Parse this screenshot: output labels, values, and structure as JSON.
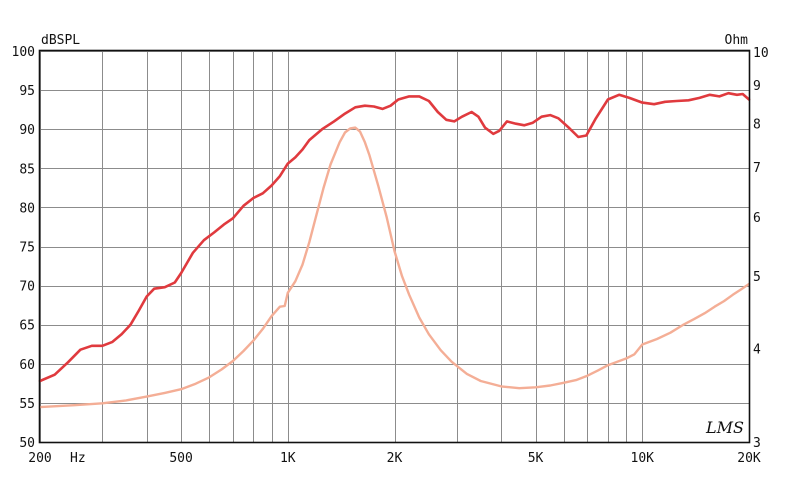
{
  "chart_data": {
    "type": "line",
    "title": "",
    "logo_text": "LMS",
    "x_axis": {
      "scale": "log",
      "range": [
        200,
        20000
      ],
      "unit_label": "Hz",
      "tick_values": [
        200,
        500,
        1000,
        2000,
        5000,
        10000,
        20000
      ],
      "tick_labels": [
        "200",
        "500",
        "1K",
        "2K",
        "5K",
        "10K",
        "20K"
      ],
      "gridlines": [
        200,
        300,
        400,
        500,
        600,
        700,
        800,
        900,
        1000,
        2000,
        3000,
        4000,
        5000,
        6000,
        7000,
        8000,
        9000,
        10000,
        20000
      ]
    },
    "y_left": {
      "label": "dBSPL",
      "range": [
        50,
        100
      ],
      "ticks": [
        50,
        55,
        60,
        65,
        70,
        75,
        80,
        85,
        90,
        95,
        100
      ],
      "tick_labels": [
        "50",
        "55",
        "60",
        "65",
        "70",
        "75",
        "80",
        "85",
        "90",
        "95",
        "100"
      ]
    },
    "y_right": {
      "label": "Ohm",
      "scale": "log",
      "range": [
        3,
        10
      ],
      "ticks": [
        3,
        4,
        5,
        6,
        7,
        8,
        9,
        10
      ],
      "tick_labels": [
        "3",
        "4",
        "5",
        "6",
        "7",
        "8",
        "9",
        "10"
      ]
    },
    "grid": true,
    "series": [
      {
        "axis": "left",
        "color": "#e03a3e",
        "points": [
          [
            200,
            57.8
          ],
          [
            220,
            58.6
          ],
          [
            240,
            60.2
          ],
          [
            260,
            61.8
          ],
          [
            280,
            62.3
          ],
          [
            300,
            62.3
          ],
          [
            320,
            62.8
          ],
          [
            340,
            63.8
          ],
          [
            360,
            65.0
          ],
          [
            380,
            66.8
          ],
          [
            400,
            68.6
          ],
          [
            420,
            69.6
          ],
          [
            450,
            69.8
          ],
          [
            480,
            70.4
          ],
          [
            500,
            71.6
          ],
          [
            540,
            74.2
          ],
          [
            580,
            75.8
          ],
          [
            620,
            76.8
          ],
          [
            660,
            77.8
          ],
          [
            700,
            78.6
          ],
          [
            750,
            80.2
          ],
          [
            800,
            81.2
          ],
          [
            850,
            81.8
          ],
          [
            900,
            82.8
          ],
          [
            950,
            84.0
          ],
          [
            1000,
            85.6
          ],
          [
            1050,
            86.4
          ],
          [
            1100,
            87.4
          ],
          [
            1150,
            88.6
          ],
          [
            1250,
            90.0
          ],
          [
            1350,
            91.0
          ],
          [
            1450,
            92.0
          ],
          [
            1550,
            92.8
          ],
          [
            1650,
            93.0
          ],
          [
            1750,
            92.9
          ],
          [
            1850,
            92.6
          ],
          [
            1950,
            93.0
          ],
          [
            2050,
            93.8
          ],
          [
            2200,
            94.2
          ],
          [
            2350,
            94.2
          ],
          [
            2500,
            93.6
          ],
          [
            2650,
            92.2
          ],
          [
            2800,
            91.2
          ],
          [
            2950,
            91.0
          ],
          [
            3100,
            91.6
          ],
          [
            3300,
            92.2
          ],
          [
            3450,
            91.6
          ],
          [
            3600,
            90.2
          ],
          [
            3800,
            89.4
          ],
          [
            3950,
            89.8
          ],
          [
            4150,
            91.0
          ],
          [
            4400,
            90.7
          ],
          [
            4650,
            90.5
          ],
          [
            4900,
            90.8
          ],
          [
            5200,
            91.6
          ],
          [
            5500,
            91.8
          ],
          [
            5800,
            91.4
          ],
          [
            6200,
            90.2
          ],
          [
            6600,
            89.0
          ],
          [
            6950,
            89.2
          ],
          [
            7400,
            91.4
          ],
          [
            8000,
            93.8
          ],
          [
            8600,
            94.4
          ],
          [
            9200,
            94.0
          ],
          [
            10000,
            93.4
          ],
          [
            10800,
            93.2
          ],
          [
            11600,
            93.5
          ],
          [
            12500,
            93.6
          ],
          [
            13500,
            93.7
          ],
          [
            14500,
            94.0
          ],
          [
            15500,
            94.4
          ],
          [
            16500,
            94.2
          ],
          [
            17500,
            94.6
          ],
          [
            18500,
            94.4
          ],
          [
            19200,
            94.5
          ],
          [
            20000,
            93.8
          ]
        ]
      },
      {
        "axis": "right",
        "color": "#f4ae96",
        "points": [
          [
            200,
            3.34
          ],
          [
            250,
            3.36
          ],
          [
            300,
            3.38
          ],
          [
            350,
            3.41
          ],
          [
            400,
            3.45
          ],
          [
            450,
            3.49
          ],
          [
            500,
            3.53
          ],
          [
            550,
            3.59
          ],
          [
            600,
            3.66
          ],
          [
            650,
            3.75
          ],
          [
            700,
            3.85
          ],
          [
            750,
            3.97
          ],
          [
            800,
            4.1
          ],
          [
            850,
            4.25
          ],
          [
            900,
            4.42
          ],
          [
            950,
            4.55
          ],
          [
            980,
            4.56
          ],
          [
            1000,
            4.75
          ],
          [
            1050,
            4.92
          ],
          [
            1100,
            5.18
          ],
          [
            1150,
            5.55
          ],
          [
            1200,
            6.0
          ],
          [
            1260,
            6.55
          ],
          [
            1320,
            7.05
          ],
          [
            1400,
            7.55
          ],
          [
            1450,
            7.78
          ],
          [
            1500,
            7.88
          ],
          [
            1550,
            7.9
          ],
          [
            1600,
            7.8
          ],
          [
            1650,
            7.55
          ],
          [
            1700,
            7.25
          ],
          [
            1800,
            6.6
          ],
          [
            1900,
            6.0
          ],
          [
            2000,
            5.4
          ],
          [
            2100,
            5.0
          ],
          [
            2200,
            4.72
          ],
          [
            2350,
            4.4
          ],
          [
            2500,
            4.18
          ],
          [
            2700,
            3.98
          ],
          [
            2900,
            3.84
          ],
          [
            3200,
            3.7
          ],
          [
            3500,
            3.62
          ],
          [
            4000,
            3.56
          ],
          [
            4500,
            3.54
          ],
          [
            5000,
            3.55
          ],
          [
            5500,
            3.57
          ],
          [
            6000,
            3.6
          ],
          [
            6500,
            3.63
          ],
          [
            7000,
            3.68
          ],
          [
            7500,
            3.74
          ],
          [
            8000,
            3.8
          ],
          [
            8500,
            3.84
          ],
          [
            9000,
            3.88
          ],
          [
            9500,
            3.93
          ],
          [
            10000,
            4.05
          ],
          [
            11000,
            4.12
          ],
          [
            12000,
            4.2
          ],
          [
            13000,
            4.3
          ],
          [
            14000,
            4.38
          ],
          [
            15000,
            4.46
          ],
          [
            16000,
            4.55
          ],
          [
            17000,
            4.63
          ],
          [
            18000,
            4.72
          ],
          [
            19000,
            4.8
          ],
          [
            20000,
            4.88
          ]
        ]
      }
    ]
  }
}
